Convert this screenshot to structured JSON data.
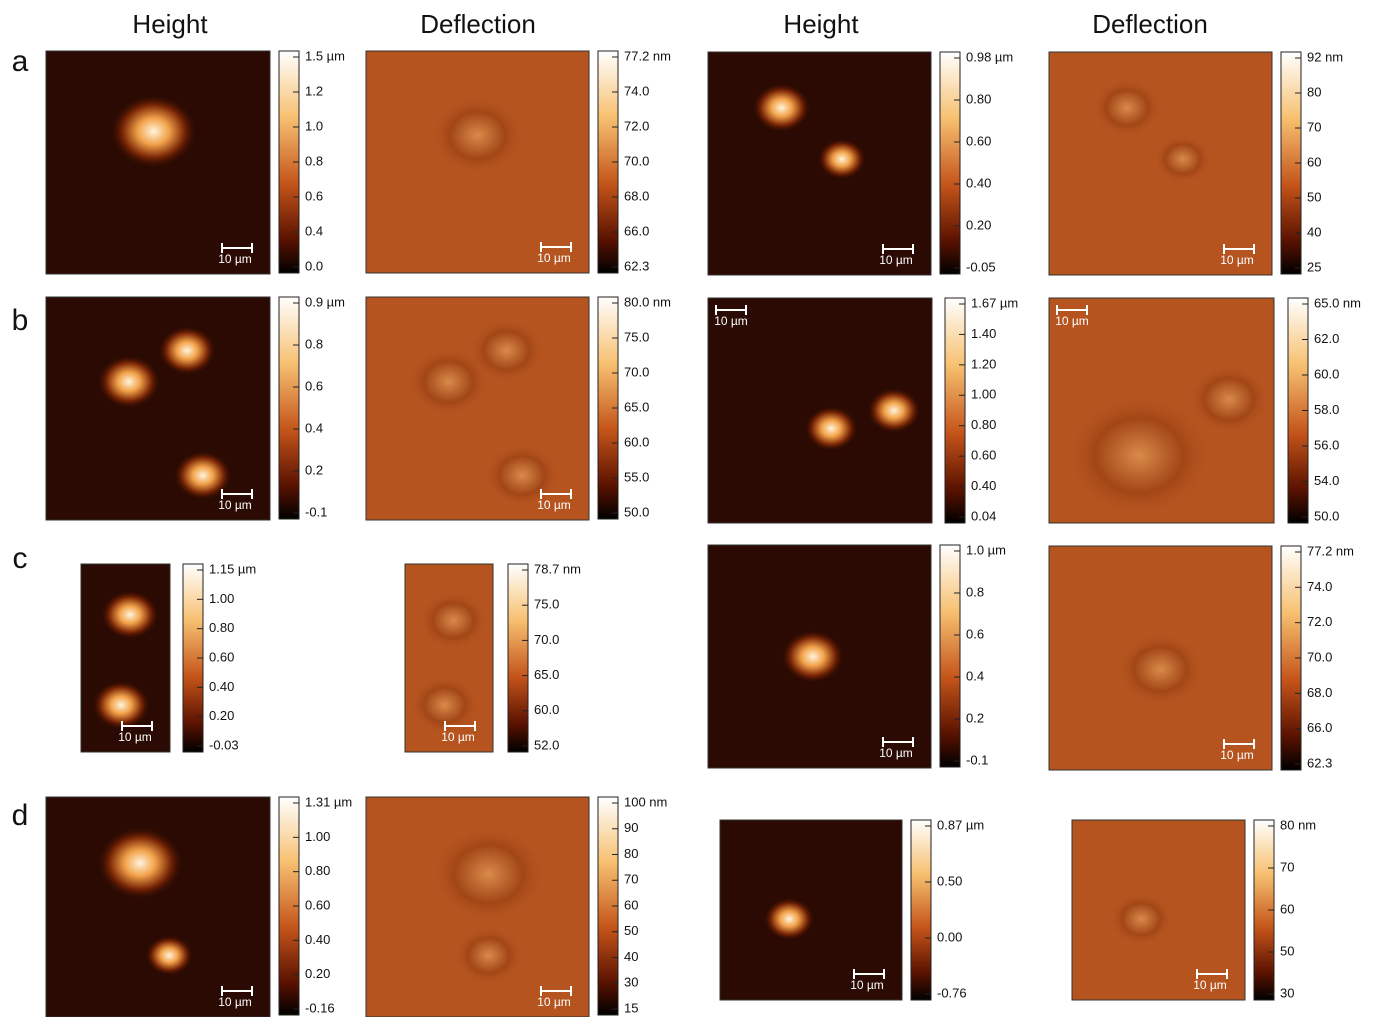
{
  "headers": [
    "Height",
    "Deflection",
    "Height",
    "Deflection"
  ],
  "row_labels": [
    "a",
    "b",
    "c",
    "d"
  ],
  "panels": [
    {
      "scale_bar": "10 µm",
      "colorbar": [
        "1.5 µm",
        "1.2",
        "1.0",
        "0.8",
        "0.6",
        "0.4",
        "0.0"
      ]
    },
    {
      "scale_bar": "10 µm",
      "colorbar": [
        "77.2 nm",
        "74.0",
        "72.0",
        "70.0",
        "68.0",
        "66.0",
        "62.3"
      ]
    },
    {
      "scale_bar": "10 µm",
      "colorbar": [
        "0.98 µm",
        "0.80",
        "0.60",
        "0.40",
        "0.20",
        "-0.05"
      ]
    },
    {
      "scale_bar": "10 µm",
      "colorbar": [
        "92 nm",
        "80",
        "70",
        "60",
        "50",
        "40",
        "25"
      ]
    },
    {
      "scale_bar": "10 µm",
      "colorbar": [
        "0.9 µm",
        "0.8",
        "0.6",
        "0.4",
        "0.2",
        "-0.1"
      ]
    },
    {
      "scale_bar": "10 µm",
      "colorbar": [
        "80.0 nm",
        "75.0",
        "70.0",
        "65.0",
        "60.0",
        "55.0",
        "50.0"
      ]
    },
    {
      "scale_bar": "10 µm",
      "colorbar": [
        "1.67 µm",
        "1.40",
        "1.20",
        "1.00",
        "0.80",
        "0.60",
        "0.40",
        "0.04"
      ]
    },
    {
      "scale_bar": "10 µm",
      "colorbar": [
        "65.0 nm",
        "62.0",
        "60.0",
        "58.0",
        "56.0",
        "54.0",
        "50.0"
      ]
    },
    {
      "scale_bar": "10 µm",
      "colorbar": [
        "1.15 µm",
        "1.00",
        "0.80",
        "0.60",
        "0.40",
        "0.20",
        "-0.03"
      ]
    },
    {
      "scale_bar": "10 µm",
      "colorbar": [
        "78.7 nm",
        "75.0",
        "70.0",
        "65.0",
        "60.0",
        "52.0"
      ]
    },
    {
      "scale_bar": "10 µm",
      "colorbar": [
        "1.0 µm",
        "0.8",
        "0.6",
        "0.4",
        "0.2",
        "-0.1"
      ]
    },
    {
      "scale_bar": "10 µm",
      "colorbar": [
        "77.2 nm",
        "74.0",
        "72.0",
        "70.0",
        "68.0",
        "66.0",
        "62.3"
      ]
    },
    {
      "scale_bar": "10 µm",
      "colorbar": [
        "1.31 µm",
        "1.00",
        "0.80",
        "0.60",
        "0.40",
        "0.20",
        "-0.16"
      ]
    },
    {
      "scale_bar": "10 µm",
      "colorbar": [
        "100 nm",
        "90",
        "80",
        "70",
        "60",
        "50",
        "40",
        "30",
        "15"
      ]
    },
    {
      "scale_bar": "10 µm",
      "colorbar": [
        "0.87 µm",
        "0.50",
        "0.00",
        "-0.76"
      ]
    },
    {
      "scale_bar": "10 µm",
      "colorbar": [
        "80 nm",
        "70",
        "60",
        "50",
        "30"
      ]
    }
  ]
}
